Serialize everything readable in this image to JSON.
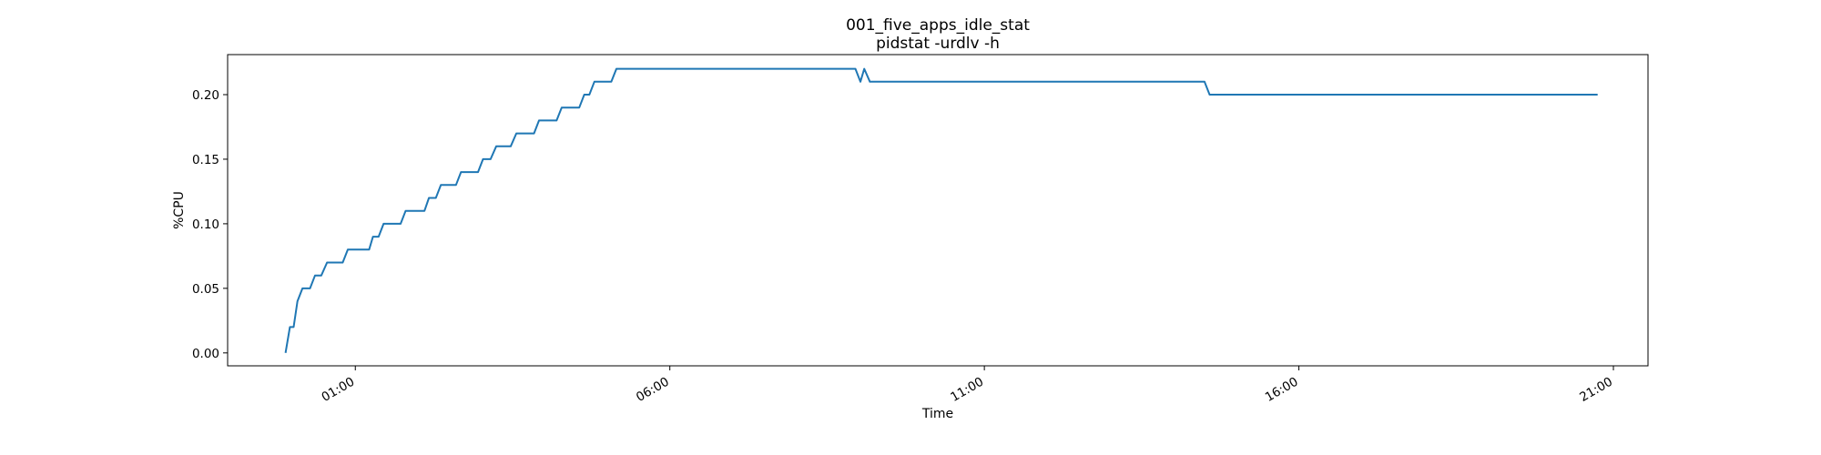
{
  "chart_data": {
    "type": "line",
    "title": "001_five_apps_idle_stat",
    "subtitle": "pidstat -urdlv -h",
    "xlabel": "Time",
    "ylabel": "%CPU",
    "x_ticks": [
      "01:00",
      "06:00",
      "11:00",
      "16:00",
      "21:00"
    ],
    "y_ticks": [
      "0.00",
      "0.05",
      "0.10",
      "0.15",
      "0.20"
    ],
    "xlim_hours": [
      22.97,
      45.55
    ],
    "ylim": [
      -0.01,
      0.231
    ],
    "grid": false,
    "series": [
      {
        "color": "#1f77b4",
        "points": [
          [
            23.89,
            0.0
          ],
          [
            23.96,
            0.02
          ],
          [
            24.02,
            0.02
          ],
          [
            24.08,
            0.04
          ],
          [
            24.16,
            0.05
          ],
          [
            24.28,
            0.05
          ],
          [
            24.36,
            0.06
          ],
          [
            24.46,
            0.06
          ],
          [
            24.55,
            0.07
          ],
          [
            24.8,
            0.07
          ],
          [
            24.88,
            0.08
          ],
          [
            25.22,
            0.08
          ],
          [
            25.28,
            0.09
          ],
          [
            25.37,
            0.09
          ],
          [
            25.45,
            0.1
          ],
          [
            25.72,
            0.1
          ],
          [
            25.8,
            0.11
          ],
          [
            26.1,
            0.11
          ],
          [
            26.17,
            0.12
          ],
          [
            26.28,
            0.12
          ],
          [
            26.36,
            0.13
          ],
          [
            26.6,
            0.13
          ],
          [
            26.68,
            0.14
          ],
          [
            26.95,
            0.14
          ],
          [
            27.03,
            0.15
          ],
          [
            27.15,
            0.15
          ],
          [
            27.24,
            0.16
          ],
          [
            27.47,
            0.16
          ],
          [
            27.56,
            0.17
          ],
          [
            27.84,
            0.17
          ],
          [
            27.92,
            0.18
          ],
          [
            28.2,
            0.18
          ],
          [
            28.28,
            0.19
          ],
          [
            28.56,
            0.19
          ],
          [
            28.64,
            0.2
          ],
          [
            28.72,
            0.2
          ],
          [
            28.8,
            0.21
          ],
          [
            29.07,
            0.21
          ],
          [
            29.15,
            0.22
          ],
          [
            32.95,
            0.22
          ],
          [
            33.03,
            0.21
          ],
          [
            33.09,
            0.22
          ],
          [
            33.18,
            0.21
          ],
          [
            38.5,
            0.21
          ],
          [
            38.58,
            0.2
          ],
          [
            44.75,
            0.2
          ]
        ]
      }
    ]
  }
}
